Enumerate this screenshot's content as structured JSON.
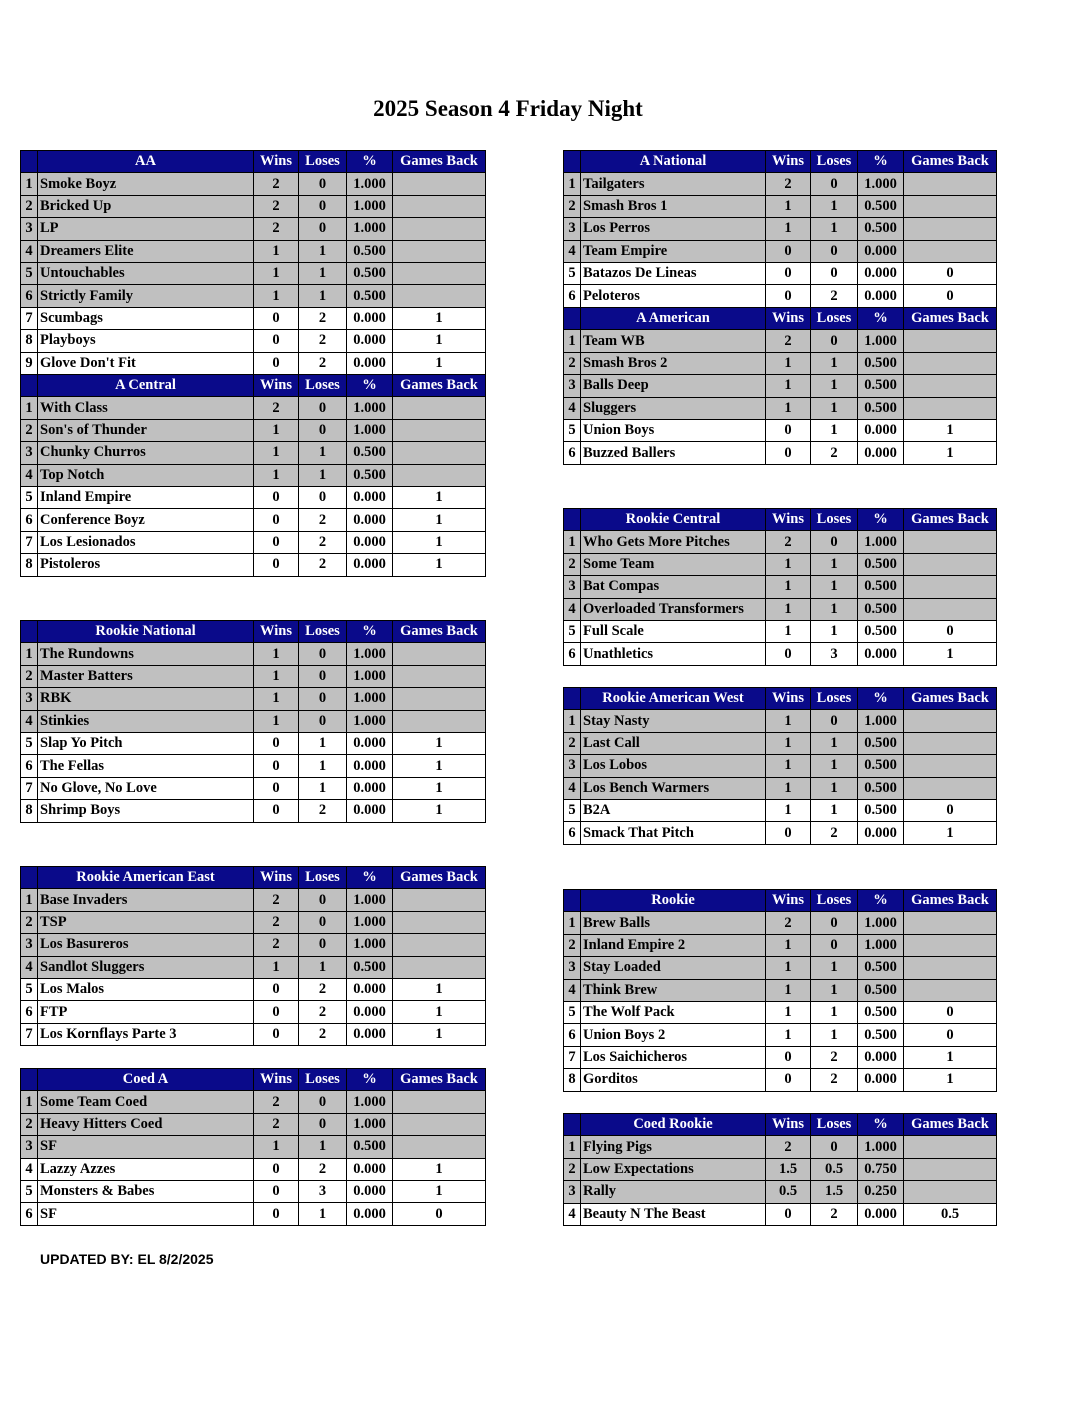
{
  "title": "2025 Season 4 Friday Night",
  "columns": {
    "wins": "Wins",
    "loses": "Loses",
    "pct": "%",
    "gb": "Games Back"
  },
  "colors": {
    "header_bg": "#0a0a8a",
    "header_text": "#ffffff",
    "playoff_row": "#c0c0c0",
    "other_row": "#ffffff"
  },
  "divisions": [
    {
      "name": "AA",
      "column": "left",
      "teams": [
        [
          "Smoke Boyz",
          "2",
          "0",
          "1.000",
          ""
        ],
        [
          "Bricked Up",
          "2",
          "0",
          "1.000",
          ""
        ],
        [
          "LP",
          "2",
          "0",
          "1.000",
          ""
        ],
        [
          "Dreamers Elite",
          "1",
          "1",
          "0.500",
          ""
        ],
        [
          "Untouchables",
          "1",
          "1",
          "0.500",
          ""
        ],
        [
          "Strictly Family",
          "1",
          "1",
          "0.500",
          ""
        ],
        [
          "Scumbags",
          "0",
          "2",
          "0.000",
          "1"
        ],
        [
          "Playboys",
          "0",
          "2",
          "0.000",
          "1"
        ],
        [
          "Glove Don't Fit",
          "0",
          "2",
          "0.000",
          "1"
        ]
      ]
    },
    {
      "name": "A Central",
      "column": "left",
      "teams": [
        [
          "With Class",
          "2",
          "0",
          "1.000",
          ""
        ],
        [
          "Son's of Thunder",
          "1",
          "0",
          "1.000",
          ""
        ],
        [
          "Chunky Churros",
          "1",
          "1",
          "0.500",
          ""
        ],
        [
          "Top Notch",
          "1",
          "1",
          "0.500",
          ""
        ],
        [
          "Inland Empire",
          "0",
          "0",
          "0.000",
          "1"
        ],
        [
          "Conference Boyz",
          "0",
          "2",
          "0.000",
          "1"
        ],
        [
          "Los Lesionados",
          "0",
          "2",
          "0.000",
          "1"
        ],
        [
          "Pistoleros",
          "0",
          "2",
          "0.000",
          "1"
        ]
      ]
    },
    {
      "name": "Rookie National",
      "column": "left",
      "teams": [
        [
          "The Rundowns",
          "1",
          "0",
          "1.000",
          ""
        ],
        [
          "Master Batters",
          "1",
          "0",
          "1.000",
          ""
        ],
        [
          "RBK",
          "1",
          "0",
          "1.000",
          ""
        ],
        [
          "Stinkies",
          "1",
          "0",
          "1.000",
          ""
        ],
        [
          "Slap Yo Pitch",
          "0",
          "1",
          "0.000",
          "1"
        ],
        [
          "The Fellas",
          "0",
          "1",
          "0.000",
          "1"
        ],
        [
          "No Glove, No Love",
          "0",
          "1",
          "0.000",
          "1"
        ],
        [
          "Shrimp Boys",
          "0",
          "2",
          "0.000",
          "1"
        ]
      ]
    },
    {
      "name": "Rookie American East",
      "column": "left",
      "teams": [
        [
          "Base Invaders",
          "2",
          "0",
          "1.000",
          ""
        ],
        [
          "TSP",
          "2",
          "0",
          "1.000",
          ""
        ],
        [
          "Los Basureros",
          "2",
          "0",
          "1.000",
          ""
        ],
        [
          "Sandlot Sluggers",
          "1",
          "1",
          "0.500",
          ""
        ],
        [
          "Los Malos",
          "0",
          "2",
          "0.000",
          "1"
        ],
        [
          "FTP",
          "0",
          "2",
          "0.000",
          "1"
        ],
        [
          "Los Kornflays Parte 3",
          "0",
          "2",
          "0.000",
          "1"
        ]
      ]
    },
    {
      "name": "Coed A",
      "column": "left",
      "teams": [
        [
          "Some Team Coed",
          "2",
          "0",
          "1.000",
          ""
        ],
        [
          "Heavy Hitters Coed",
          "2",
          "0",
          "1.000",
          ""
        ],
        [
          "SF",
          "1",
          "1",
          "0.500",
          ""
        ],
        [
          "Lazzy Azzes",
          "0",
          "2",
          "0.000",
          "1"
        ],
        [
          "Monsters & Babes",
          "0",
          "3",
          "0.000",
          "1"
        ],
        [
          "SF",
          "0",
          "1",
          "0.000",
          "0"
        ]
      ]
    },
    {
      "name": "A National",
      "column": "right",
      "teams": [
        [
          "Tailgaters",
          "2",
          "0",
          "1.000",
          ""
        ],
        [
          "Smash Bros 1",
          "1",
          "1",
          "0.500",
          ""
        ],
        [
          "Los Perros",
          "1",
          "1",
          "0.500",
          ""
        ],
        [
          "Team Empire",
          "0",
          "0",
          "0.000",
          ""
        ],
        [
          "Batazos De Lineas",
          "0",
          "0",
          "0.000",
          "0"
        ],
        [
          "Peloteros",
          "0",
          "2",
          "0.000",
          "0"
        ]
      ]
    },
    {
      "name": "A American",
      "column": "right",
      "teams": [
        [
          "Team WB",
          "2",
          "0",
          "1.000",
          ""
        ],
        [
          "Smash Bros 2",
          "1",
          "1",
          "0.500",
          ""
        ],
        [
          "Balls Deep",
          "1",
          "1",
          "0.500",
          ""
        ],
        [
          "Sluggers",
          "1",
          "1",
          "0.500",
          ""
        ],
        [
          "Union Boys",
          "0",
          "1",
          "0.000",
          "1"
        ],
        [
          "Buzzed Ballers",
          "0",
          "2",
          "0.000",
          "1"
        ]
      ]
    },
    {
      "name": "Rookie Central",
      "column": "right",
      "teams": [
        [
          "Who Gets More Pitches",
          "2",
          "0",
          "1.000",
          ""
        ],
        [
          "Some Team",
          "1",
          "1",
          "0.500",
          ""
        ],
        [
          "Bat Compas",
          "1",
          "1",
          "0.500",
          ""
        ],
        [
          "Overloaded Transformers",
          "1",
          "1",
          "0.500",
          ""
        ],
        [
          "Full Scale",
          "1",
          "1",
          "0.500",
          "0"
        ],
        [
          "Unathletics",
          "0",
          "3",
          "0.000",
          "1"
        ]
      ]
    },
    {
      "name": "Rookie American West",
      "column": "right",
      "teams": [
        [
          "Stay Nasty",
          "1",
          "0",
          "1.000",
          ""
        ],
        [
          "Last Call",
          "1",
          "1",
          "0.500",
          ""
        ],
        [
          "Los Lobos",
          "1",
          "1",
          "0.500",
          ""
        ],
        [
          "Los Bench Warmers",
          "1",
          "1",
          "0.500",
          ""
        ],
        [
          "B2A",
          "1",
          "1",
          "0.500",
          "0"
        ],
        [
          "Smack That Pitch",
          "0",
          "2",
          "0.000",
          "1"
        ]
      ]
    },
    {
      "name": "Rookie",
      "column": "right",
      "teams": [
        [
          "Brew Balls",
          "2",
          "0",
          "1.000",
          ""
        ],
        [
          "Inland Empire 2",
          "1",
          "0",
          "1.000",
          ""
        ],
        [
          "Stay Loaded",
          "1",
          "1",
          "0.500",
          ""
        ],
        [
          "Think Brew",
          "1",
          "1",
          "0.500",
          ""
        ],
        [
          "The Wolf Pack",
          "1",
          "1",
          "0.500",
          "0"
        ],
        [
          "Union Boys 2",
          "1",
          "1",
          "0.500",
          "0"
        ],
        [
          "Los Saichicheros",
          "0",
          "2",
          "0.000",
          "1"
        ],
        [
          "Gorditos",
          "0",
          "2",
          "0.000",
          "1"
        ]
      ]
    },
    {
      "name": "Coed Rookie",
      "column": "right",
      "teams": [
        [
          "Flying Pigs",
          "2",
          "0",
          "1.000",
          ""
        ],
        [
          "Low Expectations",
          "1.5",
          "0.5",
          "0.750",
          ""
        ],
        [
          "Rally",
          "0.5",
          "1.5",
          "0.250",
          ""
        ],
        [
          "Beauty N The Beast",
          "0",
          "2",
          "0.000",
          "0.5"
        ]
      ]
    }
  ],
  "footer": "UPDATED BY: EL 8/2/2025"
}
